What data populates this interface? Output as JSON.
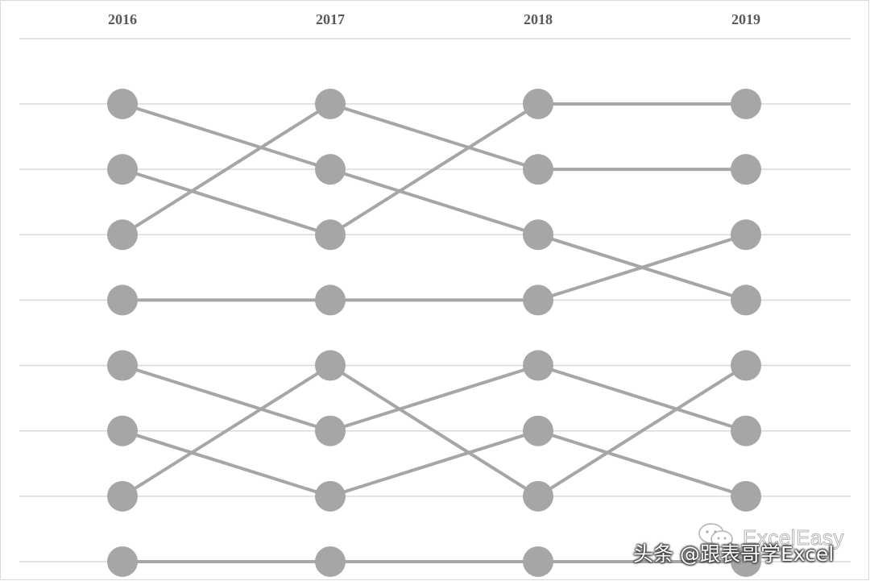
{
  "chart_data": {
    "type": "line",
    "x": [
      "2016",
      "2017",
      "2018",
      "2019"
    ],
    "yaxis": {
      "reversed": true,
      "range": [
        1,
        8
      ],
      "tick_labels_shown": false
    },
    "grid": true,
    "legend": "none",
    "marker": "circle",
    "color": "#a6a6a6",
    "series": [
      {
        "values": [
          1,
          2,
          3,
          4
        ]
      },
      {
        "values": [
          2,
          3,
          1,
          1
        ]
      },
      {
        "values": [
          3,
          1,
          2,
          2
        ]
      },
      {
        "values": [
          4,
          4,
          4,
          3
        ]
      },
      {
        "values": [
          5,
          6,
          5,
          6
        ]
      },
      {
        "values": [
          6,
          7,
          6,
          7
        ]
      },
      {
        "values": [
          7,
          5,
          7,
          5
        ]
      },
      {
        "values": [
          8,
          8,
          8,
          8
        ]
      }
    ]
  },
  "watermark": {
    "brand": "ExcelEasy",
    "text": "头条 @跟表哥学Excel",
    "icon": "wechat-icon"
  }
}
